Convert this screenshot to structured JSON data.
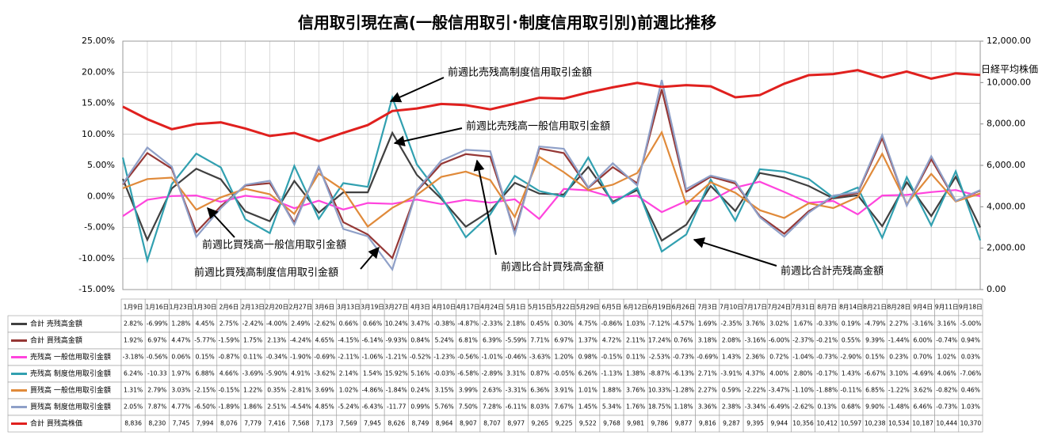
{
  "chart_data": {
    "type": "line",
    "title": "信用取引現在高(一般信用取引･制度信用取引別)前週比推移",
    "categories": [
      "1月9日",
      "1月16日",
      "1月23日",
      "1月30日",
      "2月6日",
      "2月13日",
      "2月20日",
      "2月27日",
      "3月6日",
      "3月13日",
      "3月19日",
      "3月27日",
      "4月3日",
      "4月10日",
      "4月17日",
      "4月24日",
      "5月1日",
      "5月15日",
      "5月22日",
      "5月29日",
      "6月5日",
      "6月12日",
      "6月19日",
      "6月26日",
      "7月3日",
      "7月10日",
      "7月17日",
      "7月24日",
      "7月31日",
      "8月7日",
      "8月14日",
      "8月21日",
      "8月28日",
      "9月4日",
      "9月11日",
      "9月18日"
    ],
    "ylim": [
      -15,
      25
    ],
    "yticks": [
      {
        "value": -15,
        "label": "-15.00%"
      },
      {
        "value": -10,
        "label": "-10.00%"
      },
      {
        "value": -5,
        "label": "-5.00%"
      },
      {
        "value": 0,
        "label": "0.00%"
      },
      {
        "value": 5,
        "label": "5.00%"
      },
      {
        "value": 10,
        "label": "10.00%"
      },
      {
        "value": 15,
        "label": "15.00%"
      },
      {
        "value": 20,
        "label": "20.00%"
      },
      {
        "value": 25,
        "label": "25.00%"
      }
    ],
    "y2lim": [
      0,
      12000
    ],
    "y2ticks": [
      {
        "value": 0,
        "label": "0.00"
      },
      {
        "value": 2000,
        "label": "2,000.00"
      },
      {
        "value": 4000,
        "label": "4,000.00"
      },
      {
        "value": 6000,
        "label": "6,000.00"
      },
      {
        "value": 8000,
        "label": "8,000.00"
      },
      {
        "value": 10000,
        "label": "10,000.00"
      },
      {
        "value": 12000,
        "label": "12,000.00"
      }
    ],
    "grid": true,
    "series": [
      {
        "name": "合計 売残高金額",
        "color": "#404040",
        "values": [
          2.82,
          -6.99,
          1.28,
          4.45,
          2.75,
          -2.42,
          -4.0,
          2.49,
          -2.62,
          0.66,
          0.66,
          10.24,
          3.47,
          -0.38,
          -4.87,
          -2.33,
          2.18,
          0.45,
          0.3,
          4.75,
          -0.86,
          1.03,
          -7.12,
          -4.57,
          1.69,
          -2.35,
          3.76,
          3.02,
          1.67,
          -0.33,
          0.19,
          -4.79,
          2.27,
          -3.16,
          3.16,
          -5.0
        ],
        "value_labels": [
          "2.82%",
          "-6.99%",
          "1.28%",
          "4.45%",
          "2.75%",
          "-2.42%",
          "-4.00%",
          "2.49%",
          "-2.62%",
          "0.66%",
          "0.66%",
          "10.24%",
          "3.47%",
          "-0.38%",
          "-4.87%",
          "-2.33%",
          "2.18%",
          "0.45%",
          "0.30%",
          "4.75%",
          "-0.86%",
          "1.03%",
          "-7.12%",
          "-4.57%",
          "1.69%",
          "-2.35%",
          "3.76%",
          "3.02%",
          "1.67%",
          "-0.33%",
          "0.19%",
          "-4.79%",
          "2.27%",
          "-3.16%",
          "3.16%",
          "-5.00%"
        ]
      },
      {
        "name": "合計 買残高金額",
        "color": "#953735",
        "values": [
          1.92,
          6.97,
          4.47,
          -5.77,
          -1.59,
          1.75,
          2.13,
          -4.24,
          4.65,
          -4.15,
          -6.14,
          -9.93,
          0.84,
          5.24,
          6.81,
          6.39,
          -5.59,
          7.71,
          6.97,
          1.37,
          4.72,
          2.11,
          17.24,
          0.76,
          3.18,
          2.08,
          -3.16,
          -6.0,
          -2.37,
          -0.21,
          0.55,
          9.39,
          -1.44,
          6.0,
          -0.74,
          0.94
        ],
        "value_labels": [
          "1.92%",
          "6.97%",
          "4.47%",
          "-5.77%",
          "-1.59%",
          "1.75%",
          "2.13%",
          "-4.24%",
          "4.65%",
          "-4.15%",
          "-6.14%",
          "-9.93%",
          "0.84%",
          "5.24%",
          "6.81%",
          "6.39%",
          "-5.59%",
          "7.71%",
          "6.97%",
          "1.37%",
          "4.72%",
          "2.11%",
          "17.24%",
          "0.76%",
          "3.18%",
          "2.08%",
          "-3.16%",
          "-6.00%",
          "-2.37%",
          "-0.21%",
          "0.55%",
          "9.39%",
          "-1.44%",
          "6.00%",
          "-0.74%",
          "0.94%"
        ]
      },
      {
        "name": "売残高 一般信用取引金額",
        "color": "#ff44dd",
        "values": [
          -3.18,
          -0.56,
          0.06,
          0.15,
          -0.87,
          0.11,
          -0.34,
          -1.9,
          -0.69,
          -2.11,
          -1.06,
          -1.21,
          -0.52,
          -1.23,
          -0.56,
          -1.01,
          -0.46,
          -3.63,
          1.2,
          0.98,
          -0.15,
          0.11,
          -2.53,
          -0.73,
          -0.69,
          1.43,
          2.36,
          0.72,
          -1.04,
          -0.73,
          -2.9,
          0.15,
          0.23,
          0.7,
          1.02,
          0.03
        ],
        "value_labels": [
          "-3.18%",
          "-0.56%",
          "0.06%",
          "0.15%",
          "-0.87%",
          "0.11%",
          "-0.34%",
          "-1.90%",
          "-0.69%",
          "-2.11%",
          "-1.06%",
          "-1.21%",
          "-0.52%",
          "-1.23%",
          "-0.56%",
          "-1.01%",
          "-0.46%",
          "-3.63%",
          "1.20%",
          "0.98%",
          "-0.15%",
          "0.11%",
          "-2.53%",
          "-0.73%",
          "-0.69%",
          "1.43%",
          "2.36%",
          "0.72%",
          "-1.04%",
          "-0.73%",
          "-2.90%",
          "0.15%",
          "0.23%",
          "0.70%",
          "1.02%",
          "0.03%"
        ]
      },
      {
        "name": "売残高 制度信用取引金額",
        "color": "#31a0b0",
        "values": [
          6.24,
          -10.33,
          1.97,
          6.88,
          4.66,
          -3.69,
          -5.9,
          4.91,
          -3.62,
          2.14,
          1.54,
          15.92,
          5.16,
          -0.03,
          -6.58,
          -2.89,
          3.31,
          0.87,
          -0.05,
          6.26,
          -1.13,
          1.38,
          -8.87,
          -6.13,
          2.71,
          -3.91,
          4.37,
          4.0,
          2.8,
          -0.17,
          1.43,
          -6.67,
          3.1,
          -4.69,
          4.06,
          -7.06
        ],
        "value_labels": [
          "6.24%",
          "-10.33",
          "1.97%",
          "6.88%",
          "4.66%",
          "-3.69%",
          "-5.90%",
          "4.91%",
          "-3.62%",
          "2.14%",
          "1.54%",
          "15.92%",
          "5.16%",
          "-0.03%",
          "-6.58%",
          "-2.89%",
          "3.31%",
          "0.87%",
          "-0.05%",
          "6.26%",
          "-1.13%",
          "1.38%",
          "-8.87%",
          "-6.13%",
          "2.71%",
          "-3.91%",
          "4.37%",
          "4.00%",
          "2.80%",
          "-0.17%",
          "1.43%",
          "-6.67%",
          "3.10%",
          "-4.69%",
          "4.06%",
          "-7.06%"
        ]
      },
      {
        "name": "買残高 一般信用取引金額",
        "color": "#e08a3a",
        "values": [
          1.31,
          2.79,
          3.03,
          -2.15,
          -0.15,
          1.22,
          0.35,
          -2.81,
          3.69,
          1.02,
          -4.86,
          -1.84,
          0.24,
          3.15,
          3.99,
          2.63,
          -3.31,
          6.36,
          3.91,
          1.01,
          1.88,
          3.76,
          10.33,
          -1.28,
          2.27,
          0.59,
          -2.22,
          -3.47,
          -1.1,
          -1.88,
          -0.11,
          6.85,
          -1.22,
          3.62,
          -0.82,
          0.46
        ],
        "value_labels": [
          "1.31%",
          "2.79%",
          "3.03%",
          "-2.15%",
          "-0.15%",
          "1.22%",
          "0.35%",
          "-2.81%",
          "3.69%",
          "1.02%",
          "-4.86%",
          "-1.84%",
          "0.24%",
          "3.15%",
          "3.99%",
          "2.63%",
          "-3.31%",
          "6.36%",
          "3.91%",
          "1.01%",
          "1.88%",
          "3.76%",
          "10.33%",
          "-1.28%",
          "2.27%",
          "0.59%",
          "-2.22%",
          "-3.47%",
          "-1.10%",
          "-1.88%",
          "-0.11%",
          "6.85%",
          "-1.22%",
          "3.62%",
          "-0.82%",
          "0.46%"
        ]
      },
      {
        "name": "買残高 制度信用取引金額",
        "color": "#8fa0c8",
        "values": [
          2.05,
          7.87,
          4.77,
          -6.5,
          -1.89,
          1.86,
          2.51,
          -4.54,
          4.85,
          -5.24,
          -6.43,
          -11.77,
          0.99,
          5.76,
          7.5,
          7.28,
          -6.11,
          8.03,
          7.67,
          1.45,
          5.34,
          1.76,
          18.75,
          1.18,
          3.36,
          2.38,
          -3.34,
          -6.49,
          -2.62,
          0.13,
          0.68,
          9.9,
          -1.48,
          6.46,
          -0.73,
          1.03
        ],
        "value_labels": [
          "2.05%",
          "7.87%",
          "4.77%",
          "-6.50%",
          "-1.89%",
          "1.86%",
          "2.51%",
          "-4.54%",
          "4.85%",
          "-5.24%",
          "-6.43%",
          "-11.77",
          "0.99%",
          "5.76%",
          "7.50%",
          "7.28%",
          "-6.11%",
          "8.03%",
          "7.67%",
          "1.45%",
          "5.34%",
          "1.76%",
          "18.75%",
          "1.18%",
          "3.36%",
          "2.38%",
          "-3.34%",
          "-6.49%",
          "-2.62%",
          "0.13%",
          "0.68%",
          "9.90%",
          "-1.48%",
          "6.46%",
          "-0.73%",
          "1.03%"
        ]
      },
      {
        "name": "合計 買残高株価",
        "color": "#e0201e",
        "axis": "y2",
        "values": [
          8836,
          8230,
          7745,
          7994,
          8076,
          7779,
          7416,
          7568,
          7173,
          7569,
          7945,
          8626,
          8749,
          8964,
          8907,
          8707,
          8977,
          9265,
          9225,
          9522,
          9768,
          9981,
          9786,
          9877,
          9816,
          9287,
          9395,
          9944,
          10356,
          10412,
          10597,
          10238,
          10534,
          10187,
          10444,
          10370
        ],
        "value_labels": [
          "8,836",
          "8,230",
          "7,745",
          "7,994",
          "8,076",
          "7,779",
          "7,416",
          "7,568",
          "7,173",
          "7,569",
          "7,945",
          "8,626",
          "8,749",
          "8,964",
          "8,907",
          "8,707",
          "8,977",
          "9,265",
          "9,225",
          "9,522",
          "9,768",
          "9,981",
          "9,786",
          "9,877",
          "9,816",
          "9,287",
          "9,395",
          "9,944",
          "10,356",
          "10,412",
          "10,597",
          "10,238",
          "10,534",
          "10,187",
          "10,444",
          "10,370"
        ]
      }
    ],
    "annotations": [
      "前週比売残高制度信用取引金額",
      "前週比売残高一般信用取引金額",
      "前週比買残高一般信用取引金額",
      "前週比買残高制度信用取引金額",
      "前週比合計買残高金額",
      "前週比合計売残高金額",
      "日経平均株価"
    ]
  }
}
